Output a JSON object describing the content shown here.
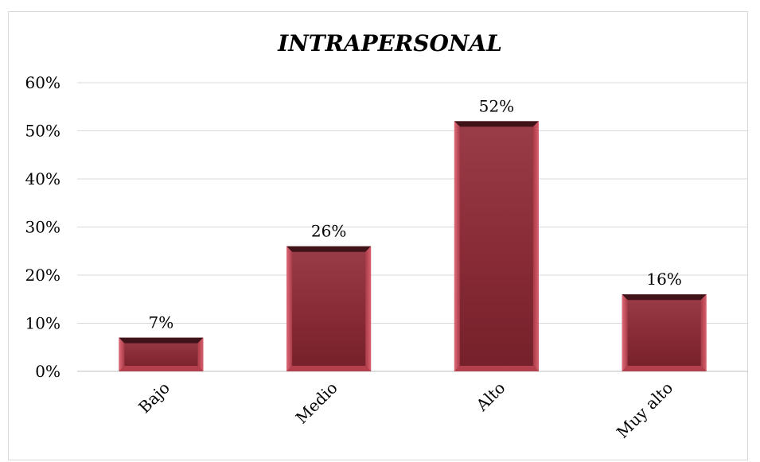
{
  "chart_data": {
    "type": "bar",
    "title": "INTRAPERSONAL",
    "categories": [
      "Bajo",
      "Medio",
      "Alto",
      "Muy alto"
    ],
    "values": [
      7,
      26,
      52,
      16
    ],
    "value_labels": [
      "7%",
      "26%",
      "52%",
      "16%"
    ],
    "ylim": [
      0,
      60
    ],
    "yticks": [
      0,
      10,
      20,
      30,
      40,
      50,
      60
    ],
    "ytick_labels": [
      "0%",
      "10%",
      "20%",
      "30%",
      "40%",
      "50%",
      "60%"
    ],
    "xlabel": "",
    "ylabel": "",
    "grid": true,
    "legend": "none",
    "bar_color": "#8b2f3a"
  }
}
